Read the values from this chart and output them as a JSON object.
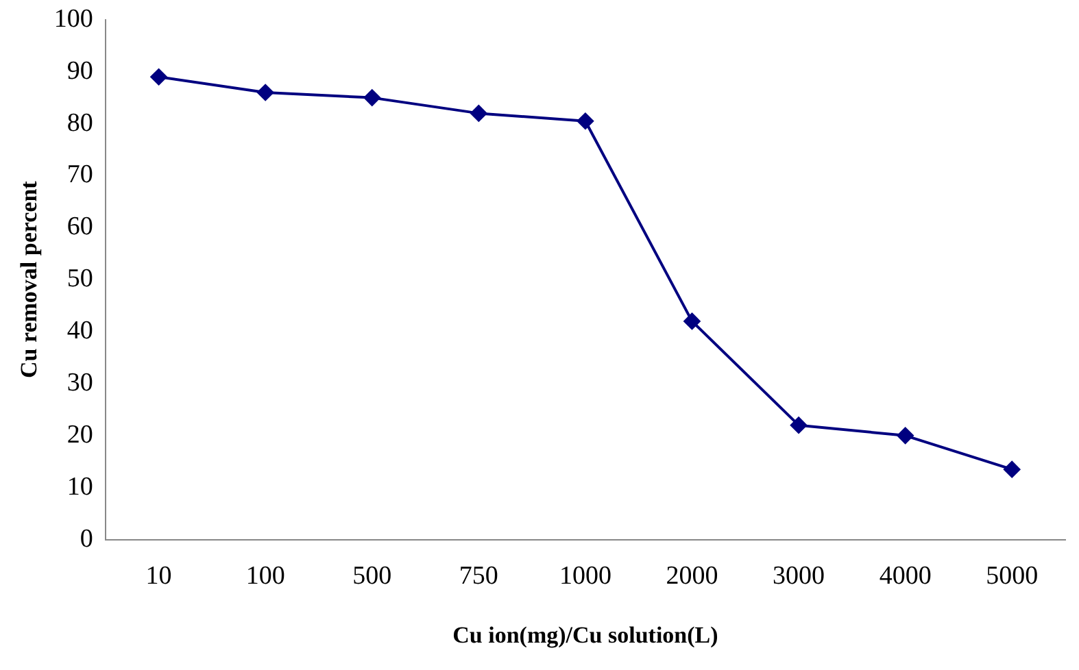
{
  "chart_data": {
    "type": "line",
    "xlabel": "Cu ion(mg)/Cu solution(L)",
    "ylabel": "Cu removal percent",
    "categories": [
      "10",
      "100",
      "500",
      "750",
      "1000",
      "2000",
      "3000",
      "4000",
      "5000"
    ],
    "series": [
      {
        "color": "#000080",
        "values": [
          89,
          86,
          85,
          82,
          80.5,
          42,
          22,
          20,
          13.5
        ]
      }
    ],
    "ylim": [
      0,
      100
    ],
    "yticks": [
      0,
      10,
      20,
      30,
      40,
      50,
      60,
      70,
      80,
      90,
      100
    ],
    "grid": false,
    "legend": false,
    "marker": "diamond",
    "line_style": "solid"
  }
}
